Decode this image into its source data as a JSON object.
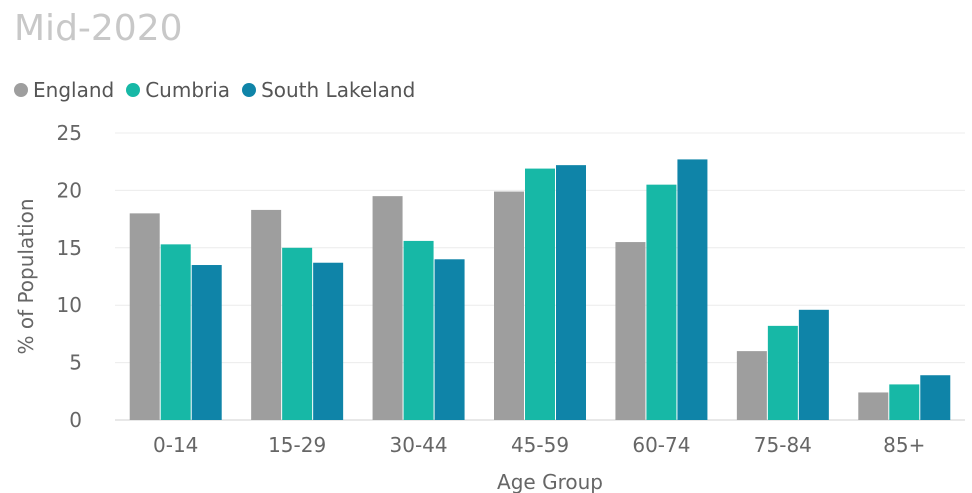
{
  "chart_data": {
    "type": "bar",
    "title": "Mid-2020",
    "xlabel": "Age Group",
    "ylabel": "% of Population",
    "ylim": [
      0,
      25
    ],
    "yticks": [
      0,
      5,
      10,
      15,
      20,
      25
    ],
    "grid": true,
    "legend_position": "top-left",
    "categories": [
      "0-14",
      "15-29",
      "30-44",
      "45-59",
      "60-74",
      "75-84",
      "85+"
    ],
    "series": [
      {
        "name": "England",
        "color": "#9e9e9e",
        "values": [
          18.0,
          18.3,
          19.5,
          19.9,
          15.5,
          6.0,
          2.4
        ]
      },
      {
        "name": "Cumbria",
        "color": "#17b8a6",
        "values": [
          15.3,
          15.0,
          15.6,
          21.9,
          20.5,
          8.2,
          3.1
        ]
      },
      {
        "name": "South Lakeland",
        "color": "#0f84a8",
        "values": [
          13.5,
          13.7,
          14.0,
          22.2,
          22.7,
          9.6,
          3.9
        ]
      }
    ]
  }
}
